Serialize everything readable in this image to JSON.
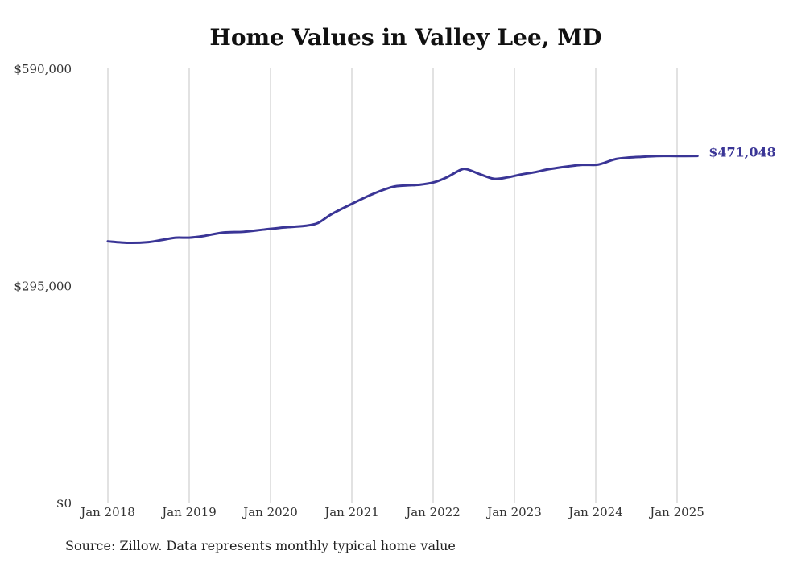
{
  "chart_data": {
    "type": "line",
    "title": "Home Values in Valley Lee, MD",
    "xlabel": "",
    "ylabel": "",
    "ylim": [
      0,
      590000
    ],
    "yticks": [
      0,
      295000,
      590000
    ],
    "ytick_labels": [
      "$0",
      "$295,000",
      "$590,000"
    ],
    "xticks": [
      "2018-01",
      "2019-01",
      "2020-01",
      "2021-01",
      "2022-01",
      "2023-01",
      "2024-01",
      "2025-01"
    ],
    "xtick_labels": [
      "Jan 2018",
      "Jan 2019",
      "Jan 2020",
      "Jan 2021",
      "Jan 2022",
      "Jan 2023",
      "Jan 2024",
      "Jan 2025"
    ],
    "grid": "vertical",
    "color": "#3a3596",
    "end_label": "$471,048",
    "series": [
      {
        "name": "",
        "points": [
          [
            "2018-01",
            355000
          ],
          [
            "2018-04",
            353000
          ],
          [
            "2018-07",
            354000
          ],
          [
            "2018-09",
            357000
          ],
          [
            "2018-11",
            360000
          ],
          [
            "2019-01",
            360000
          ],
          [
            "2019-03",
            362000
          ],
          [
            "2019-06",
            367000
          ],
          [
            "2019-09",
            368000
          ],
          [
            "2019-12",
            371000
          ],
          [
            "2020-03",
            374000
          ],
          [
            "2020-06",
            376000
          ],
          [
            "2020-08",
            380000
          ],
          [
            "2020-10",
            392000
          ],
          [
            "2021-01",
            406000
          ],
          [
            "2021-04",
            419000
          ],
          [
            "2021-07",
            429000
          ],
          [
            "2021-09",
            431000
          ],
          [
            "2021-11",
            432000
          ],
          [
            "2022-01",
            435000
          ],
          [
            "2022-03",
            442000
          ],
          [
            "2022-05",
            452000
          ],
          [
            "2022-06",
            453000
          ],
          [
            "2022-08",
            446000
          ],
          [
            "2022-10",
            440000
          ],
          [
            "2022-12",
            442000
          ],
          [
            "2023-02",
            446000
          ],
          [
            "2023-04",
            449000
          ],
          [
            "2023-06",
            453000
          ],
          [
            "2023-09",
            457000
          ],
          [
            "2023-11",
            459000
          ],
          [
            "2024-01",
            459000
          ],
          [
            "2024-02",
            461000
          ],
          [
            "2024-04",
            467000
          ],
          [
            "2024-06",
            469000
          ],
          [
            "2024-08",
            470000
          ],
          [
            "2024-10",
            471000
          ],
          [
            "2025-01",
            471000
          ],
          [
            "2025-04",
            471048
          ]
        ]
      }
    ]
  },
  "source_note": "Source: Zillow. Data represents monthly typical home value"
}
